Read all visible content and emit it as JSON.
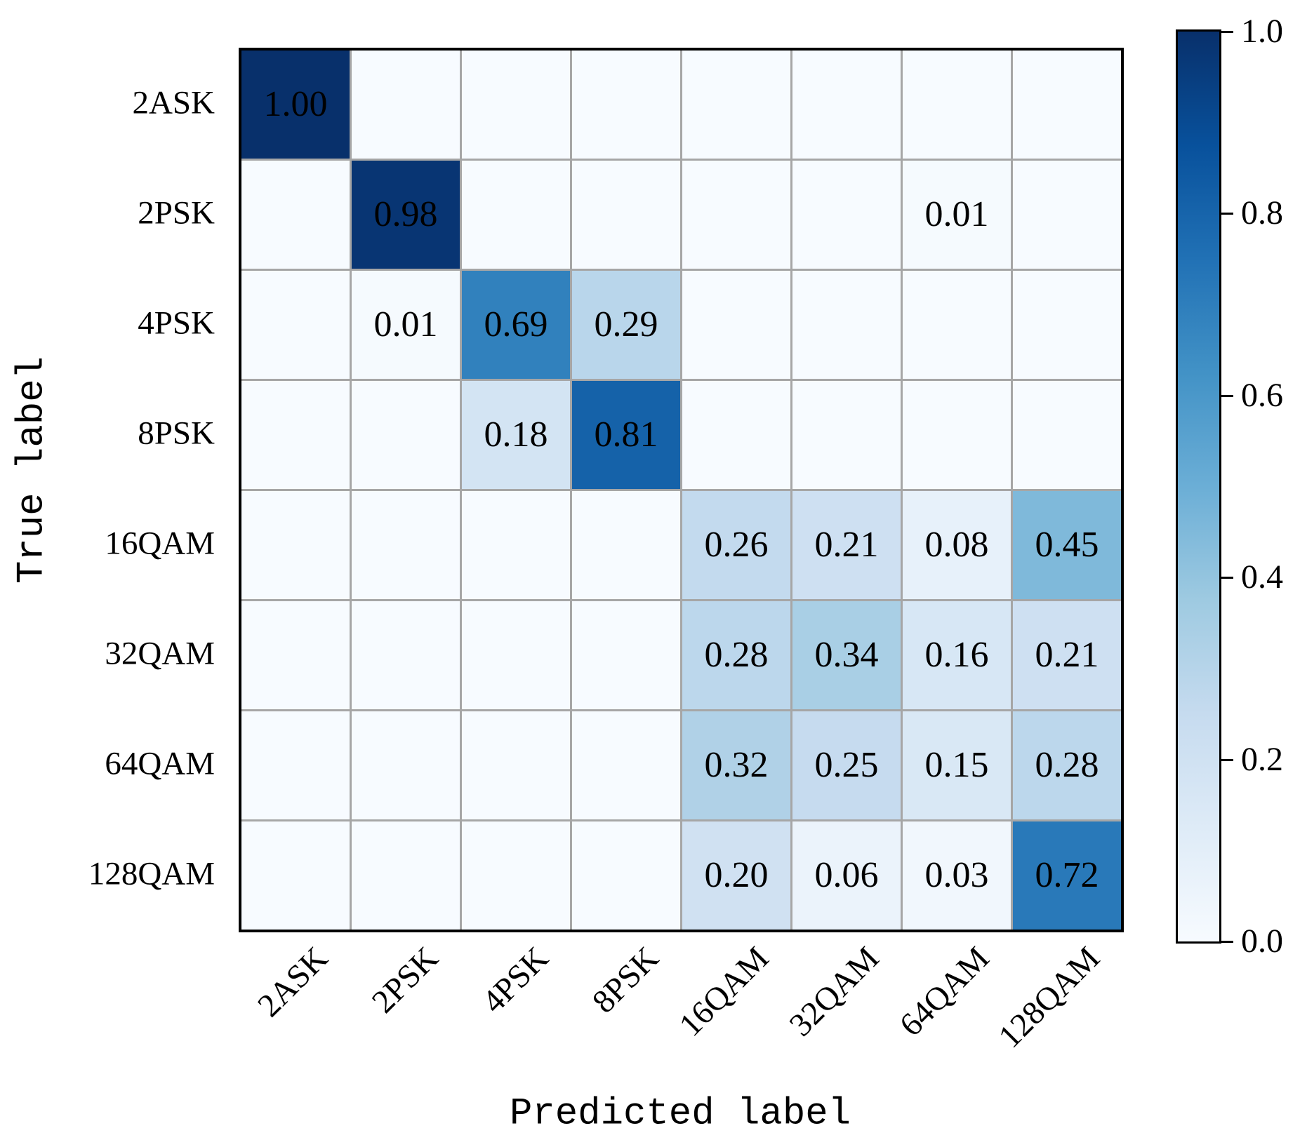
{
  "chart_data": {
    "type": "heatmap",
    "title": "",
    "xlabel": "Predicted label",
    "ylabel": "True label",
    "categories": [
      "2ASK",
      "2PSK",
      "4PSK",
      "8PSK",
      "16QAM",
      "32QAM",
      "64QAM",
      "128QAM"
    ],
    "matrix": [
      [
        1.0,
        0.0,
        0.0,
        0.0,
        0.0,
        0.0,
        0.0,
        0.0
      ],
      [
        0.0,
        0.98,
        0.0,
        0.0,
        0.0,
        0.0,
        0.01,
        0.0
      ],
      [
        0.0,
        0.01,
        0.69,
        0.29,
        0.0,
        0.0,
        0.0,
        0.0
      ],
      [
        0.0,
        0.0,
        0.18,
        0.81,
        0.0,
        0.0,
        0.0,
        0.0
      ],
      [
        0.0,
        0.0,
        0.0,
        0.0,
        0.26,
        0.21,
        0.08,
        0.45
      ],
      [
        0.0,
        0.0,
        0.0,
        0.0,
        0.28,
        0.34,
        0.16,
        0.21
      ],
      [
        0.0,
        0.0,
        0.0,
        0.0,
        0.32,
        0.25,
        0.15,
        0.28
      ],
      [
        0.0,
        0.0,
        0.0,
        0.0,
        0.2,
        0.06,
        0.03,
        0.72
      ]
    ],
    "cell_labels": [
      [
        "1.00",
        "",
        "",
        "",
        "",
        "",
        "",
        ""
      ],
      [
        "",
        "0.98",
        "",
        "",
        "",
        "",
        "0.01",
        ""
      ],
      [
        "",
        "0.01",
        "0.69",
        "0.29",
        "",
        "",
        "",
        ""
      ],
      [
        "",
        "",
        "0.18",
        "0.81",
        "",
        "",
        "",
        ""
      ],
      [
        "",
        "",
        "",
        "",
        "0.26",
        "0.21",
        "0.08",
        "0.45"
      ],
      [
        "",
        "",
        "",
        "",
        "0.28",
        "0.34",
        "0.16",
        "0.21"
      ],
      [
        "",
        "",
        "",
        "",
        "0.32",
        "0.25",
        "0.15",
        "0.28"
      ],
      [
        "",
        "",
        "",
        "",
        "0.20",
        "0.06",
        "0.03",
        "0.72"
      ]
    ],
    "value_range": [
      0,
      1
    ],
    "grid": true,
    "gridline_color": "#a6a6a6",
    "frame_color": "#000000",
    "text_color": "#000000",
    "colorbar": {
      "position": "right",
      "ticks": [
        {
          "label": "1.0",
          "value": 1.0
        },
        {
          "label": "0.8",
          "value": 0.8
        },
        {
          "label": "0.6",
          "value": 0.6
        },
        {
          "label": "0.4",
          "value": 0.4
        },
        {
          "label": "0.2",
          "value": 0.2
        },
        {
          "label": "0.0",
          "value": 0.0
        }
      ]
    },
    "colormap": {
      "name": "Blues",
      "stops": [
        {
          "pos": 0.0,
          "color": "#f7fbff"
        },
        {
          "pos": 0.125,
          "color": "#deebf7"
        },
        {
          "pos": 0.25,
          "color": "#c6dbef"
        },
        {
          "pos": 0.375,
          "color": "#9ecae1"
        },
        {
          "pos": 0.5,
          "color": "#6baed6"
        },
        {
          "pos": 0.625,
          "color": "#4292c6"
        },
        {
          "pos": 0.75,
          "color": "#2171b5"
        },
        {
          "pos": 0.875,
          "color": "#08519c"
        },
        {
          "pos": 1.0,
          "color": "#08306b"
        }
      ]
    }
  }
}
